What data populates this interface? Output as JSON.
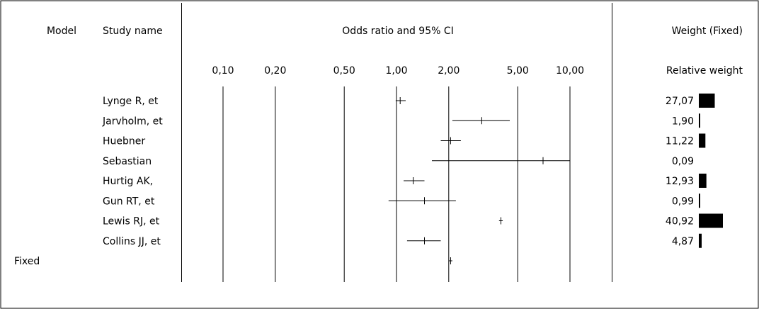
{
  "chart_data": {
    "type": "forest",
    "title": "Odds ratio and 95% CI",
    "headers": {
      "model": "Model",
      "study_name": "Study name",
      "odds_ratio": "Odds ratio and 95% CI",
      "weight": "Weight (Fixed)",
      "relative_weight": "Relative weight"
    },
    "x_scale": "log",
    "xlim": [
      0.1,
      10
    ],
    "ticks": [
      {
        "value": 0.1,
        "label": "0,10"
      },
      {
        "value": 0.2,
        "label": "0,20"
      },
      {
        "value": 0.5,
        "label": "0,50"
      },
      {
        "value": 1,
        "label": "1,00"
      },
      {
        "value": 2,
        "label": "2,00"
      },
      {
        "value": 5,
        "label": "5,00"
      },
      {
        "value": 10,
        "label": "10,00"
      }
    ],
    "studies": [
      {
        "name": "Lynge R, et",
        "or": 1.05,
        "lower": 0.99,
        "upper": 1.13,
        "weight_label": "27,07",
        "weight": 27.07
      },
      {
        "name": "Jarvholm, et",
        "or": 3.1,
        "lower": 2.1,
        "upper": 4.5,
        "weight_label": "1,90",
        "weight": 1.9
      },
      {
        "name": "Huebner",
        "or": 2.05,
        "lower": 1.8,
        "upper": 2.35,
        "weight_label": "11,22",
        "weight": 11.22
      },
      {
        "name": "Sebastian",
        "or": 7.0,
        "lower": 1.6,
        "upper": 10.0,
        "weight_label": "0,09",
        "weight": 0.09
      },
      {
        "name": "Hurtig AK,",
        "or": 1.25,
        "lower": 1.1,
        "upper": 1.45,
        "weight_label": "12,93",
        "weight": 12.93
      },
      {
        "name": "Gun RT, et",
        "or": 1.45,
        "lower": 0.9,
        "upper": 2.2,
        "weight_label": "0,99",
        "weight": 0.99
      },
      {
        "name": "Lewis RJ, et",
        "or": 4.0,
        "lower": 3.9,
        "upper": 4.1,
        "weight_label": "40,92",
        "weight": 40.92
      },
      {
        "name": "Collins JJ, et",
        "or": 1.45,
        "lower": 1.15,
        "upper": 1.8,
        "weight_label": "4,87",
        "weight": 4.87
      }
    ],
    "summary": {
      "label": "Fixed",
      "or": 2.05,
      "lower": 2.0,
      "upper": 2.1
    },
    "grid": false
  }
}
